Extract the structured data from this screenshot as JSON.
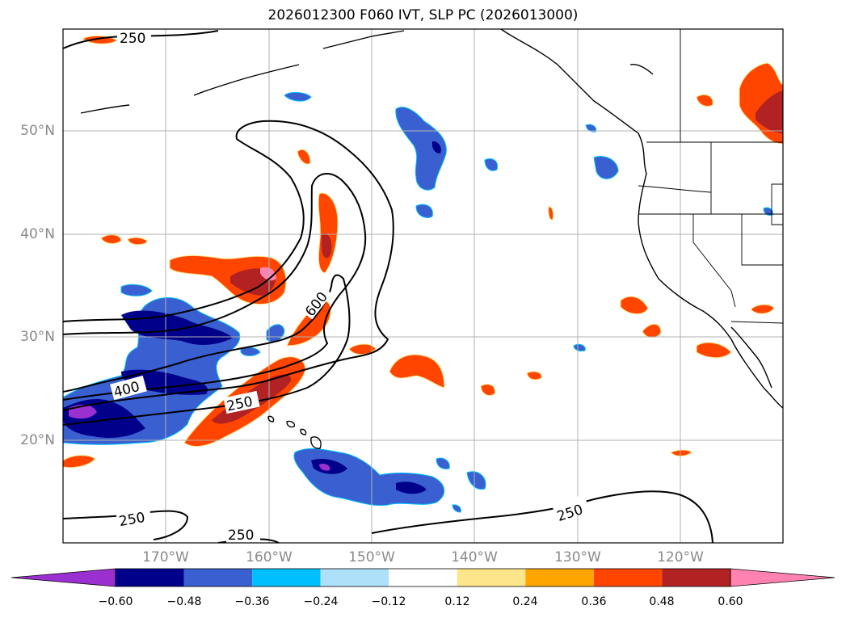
{
  "title": "2026012300 F060 IVT, SLP PC (2026013000)",
  "lat_labels": [
    "50°N",
    "40°N",
    "30°N",
    "20°N"
  ],
  "lon_labels": [
    "170°W",
    "160°W",
    "150°W",
    "140°W",
    "130°W",
    "120°W"
  ],
  "contour_labels": [
    "250",
    "600",
    "400",
    "250",
    "250",
    "250",
    "250"
  ],
  "colorbar": {
    "ticks": [
      "−0.60",
      "−0.48",
      "−0.36",
      "−0.24",
      "−0.12",
      "0.12",
      "0.24",
      "0.36",
      "0.48",
      "0.60"
    ],
    "colors": [
      "#9b30d0",
      "#00008b",
      "#3a5fd0",
      "#00bfff",
      "#aee0fa",
      "#ffffff",
      "#fde68a",
      "#ffa500",
      "#ff4500",
      "#b22222",
      "#ff82b0"
    ]
  }
}
